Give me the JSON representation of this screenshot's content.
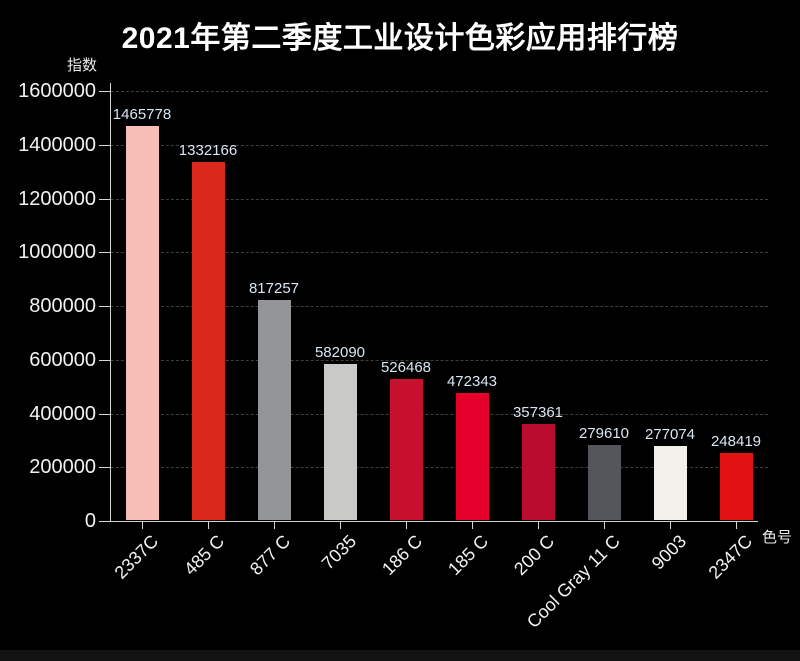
{
  "page": {
    "background_color": "#000000",
    "footer_strip_color": "#121212"
  },
  "chart_data": {
    "type": "bar",
    "title": "2021年第二季度工业设计色彩应用排行榜",
    "xlabel": "色号",
    "ylabel": "指数",
    "ylim": [
      0,
      1600000
    ],
    "y_tick_step": 200000,
    "y_ticks": [
      0,
      200000,
      400000,
      600000,
      800000,
      1000000,
      1200000,
      1400000,
      1600000
    ],
    "grid": "horizontal-dashed",
    "legend": "none",
    "categories": [
      "2337C",
      "485 C",
      "877 C",
      "7035",
      "186 C",
      "185 C",
      "200 C",
      "Cool Gray 11 C",
      "9003",
      "2347C"
    ],
    "values": [
      1465778,
      1332166,
      817257,
      582090,
      526468,
      472343,
      357361,
      279610,
      277074,
      248419
    ],
    "bar_colors": [
      "#F5BEB6",
      "#DA291C",
      "#939598",
      "#C9CAC7",
      "#C8102E",
      "#E4002B",
      "#BA0C2F",
      "#54565B",
      "#F1F0EA",
      "#E21212"
    ],
    "value_label_color": "#D9E6F4",
    "axis_color": "#D4D4D4",
    "grid_color": "#3F3F3F",
    "background_color": "#000000"
  }
}
